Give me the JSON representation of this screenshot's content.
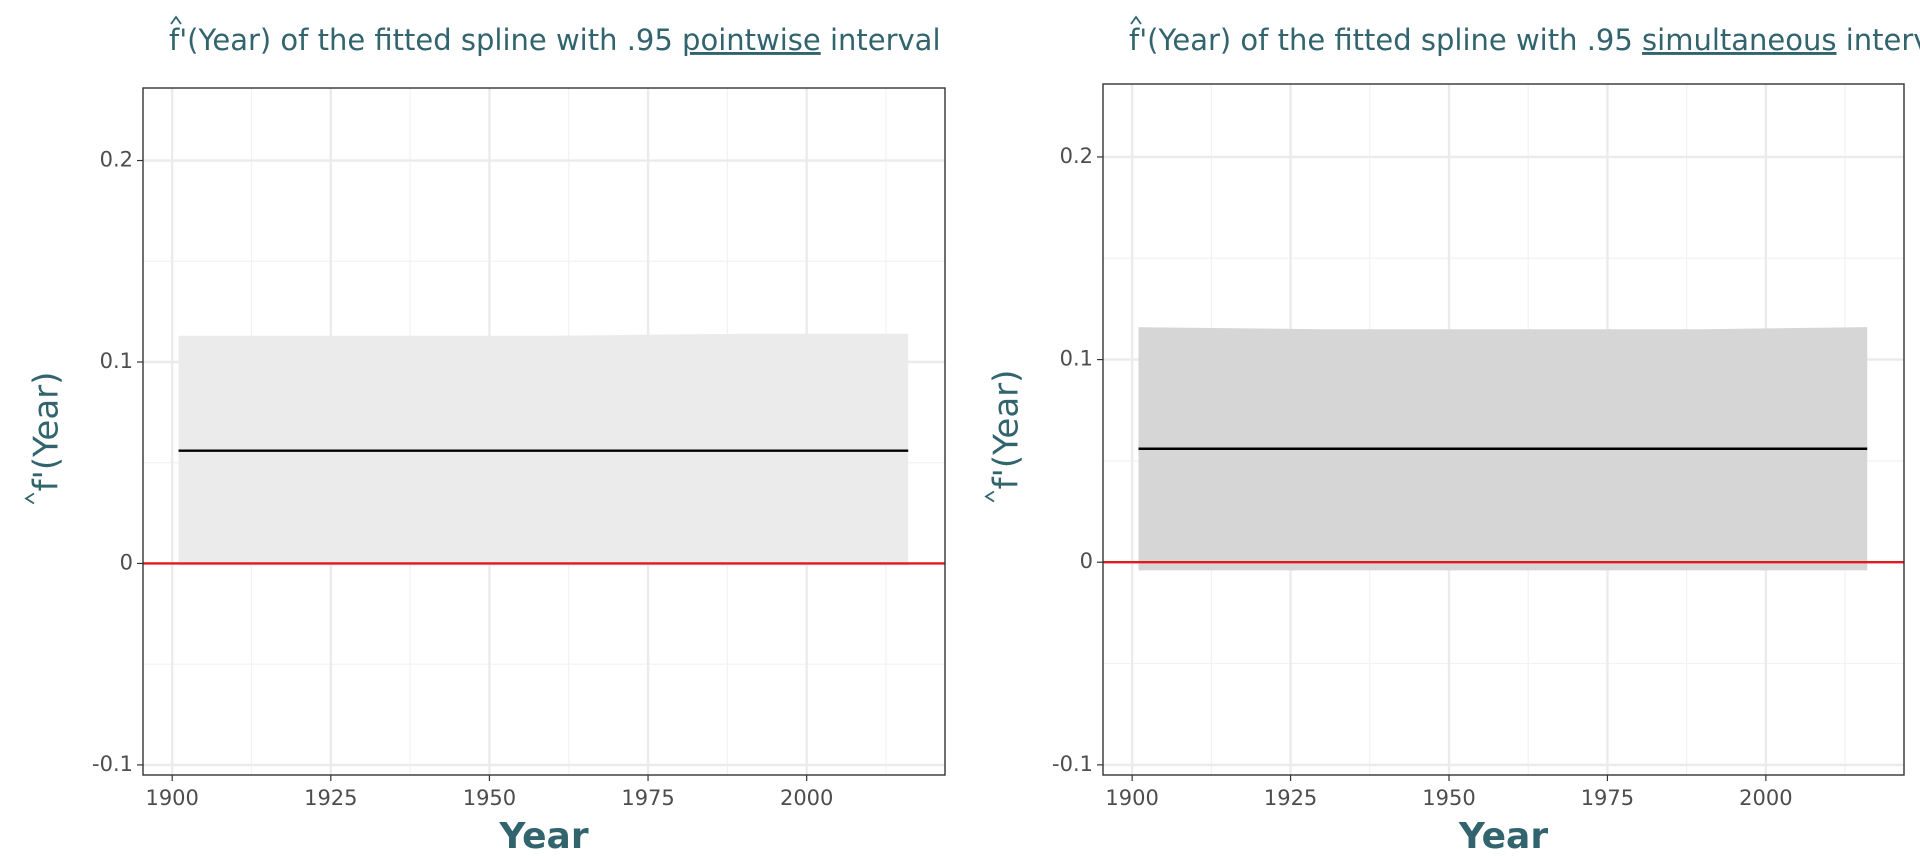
{
  "chart_data": [
    {
      "type": "line",
      "title_prefix": "f'(Year) of the fitted spline with .95 ",
      "title_emph": "pointwise",
      "title_suffix": " interval",
      "x_label": "Year",
      "y_label": "f'(Year)",
      "x": [
        1901,
        1930,
        1960,
        1990,
        2016
      ],
      "values": [
        0.056,
        0.056,
        0.056,
        0.056,
        0.056
      ],
      "lower": [
        -0.001,
        -0.001,
        -0.001,
        -0.001,
        -0.001
      ],
      "upper": [
        0.113,
        0.113,
        0.113,
        0.114,
        0.114
      ],
      "color": "#000000",
      "band_color": "#ebebeb",
      "hline": 0,
      "hline_color": "#e31a1c",
      "xlim": [
        1895.4,
        2021.8
      ],
      "xticks": [
        1900,
        1925,
        1950,
        1975,
        2000
      ],
      "x_minor_grid": [
        1912.5,
        1937.5,
        1962.5,
        1987.5,
        2012.5
      ],
      "ylim": [
        -0.105,
        0.236
      ],
      "yticks": [
        -0.1,
        0.0,
        0.1,
        0.2
      ],
      "y_minor_grid": [
        -0.05,
        0.05,
        0.15
      ],
      "grid": true
    },
    {
      "type": "line",
      "title_prefix": "f'(Year) of the fitted spline with .95 ",
      "title_emph": "simultaneous",
      "title_suffix": " interval",
      "x_label": "Year",
      "y_label": "f'(Year)",
      "x": [
        1901,
        1930,
        1960,
        1990,
        2016
      ],
      "values": [
        0.056,
        0.056,
        0.056,
        0.056,
        0.056
      ],
      "lower": [
        -0.004,
        -0.004,
        -0.004,
        -0.004,
        -0.004
      ],
      "upper": [
        0.116,
        0.115,
        0.115,
        0.115,
        0.116
      ],
      "color": "#000000",
      "band_color": "#d6d6d6",
      "hline": 0,
      "hline_color": "#e31a1c",
      "xlim": [
        1895.4,
        2021.8
      ],
      "xticks": [
        1900,
        1925,
        1950,
        1975,
        2000
      ],
      "x_minor_grid": [
        1912.5,
        1937.5,
        1962.5,
        1987.5,
        2012.5
      ],
      "ylim": [
        -0.105,
        0.236
      ],
      "yticks": [
        -0.1,
        0.0,
        0.1,
        0.2
      ],
      "y_minor_grid": [
        -0.05,
        0.05,
        0.15
      ],
      "grid": true
    }
  ]
}
